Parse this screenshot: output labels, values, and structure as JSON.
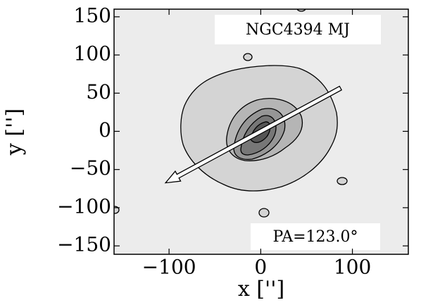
{
  "chart_data": {
    "type": "contour",
    "title": "NGC4394 MJ",
    "x_label": "x ['']",
    "y_label": "y ['']",
    "xlim": [
      -160,
      161
    ],
    "ylim": [
      -161,
      160
    ],
    "xticks": [
      {
        "value": -100,
        "label": "−100"
      },
      0,
      100
    ],
    "yticks": [
      {
        "value": -150,
        "label": "−150"
      },
      {
        "value": -100,
        "label": "−100"
      },
      {
        "value": -50,
        "label": "−50"
      },
      0,
      50,
      100,
      150
    ],
    "pa": 123.0,
    "pa_label": "PA=123.0°"
  }
}
